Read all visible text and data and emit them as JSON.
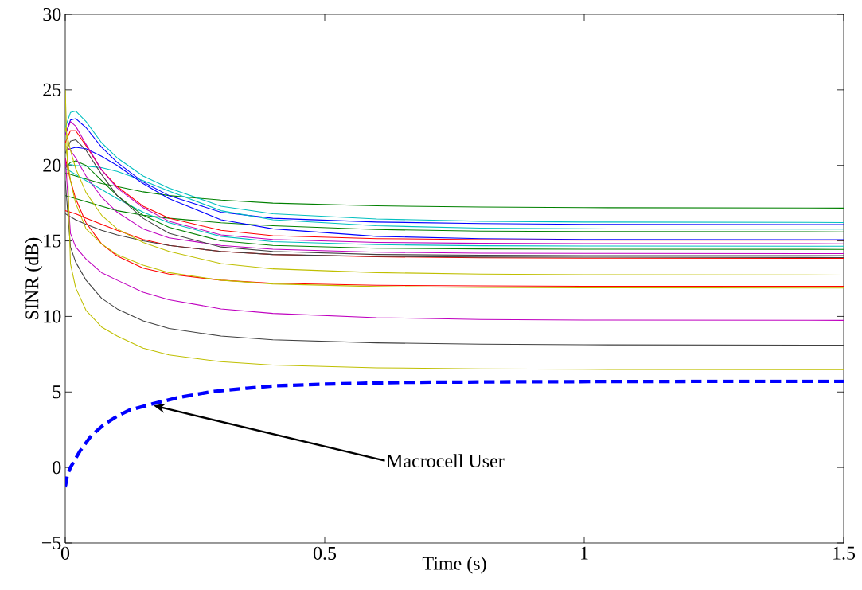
{
  "chart_data": {
    "type": "line",
    "xlabel": "Time (s)",
    "ylabel": "SINR (dB)",
    "xlim": [
      0,
      1.5
    ],
    "ylim": [
      -5,
      30
    ],
    "xticks": [
      0,
      0.5,
      1,
      1.5
    ],
    "yticks": [
      {
        "value": -5,
        "label": "−5"
      },
      0,
      5,
      10,
      15,
      20,
      25,
      30
    ],
    "grid": false,
    "marker": "none",
    "x": [
      0,
      0.01,
      0.02,
      0.04,
      0.07,
      0.1,
      0.15,
      0.2,
      0.3,
      0.4,
      0.6,
      0.8,
      1.0,
      1.5
    ],
    "series": [
      {
        "color": "#008000",
        "line_style": "solid",
        "values": [
          19.5,
          19.4,
          19.3,
          19.1,
          18.8,
          18.6,
          18.25,
          18.0,
          17.7,
          17.5,
          17.32,
          17.24,
          17.2,
          17.17
        ]
      },
      {
        "color": "#00bfbf",
        "line_style": "solid",
        "values": [
          22.5,
          23.5,
          23.6,
          22.9,
          21.5,
          20.5,
          19.3,
          18.5,
          17.3,
          16.8,
          16.45,
          16.3,
          16.25,
          16.22
        ]
      },
      {
        "color": "#0000ff",
        "line_style": "solid",
        "values": [
          22.0,
          23.0,
          23.1,
          22.5,
          21.2,
          20.2,
          18.9,
          18.0,
          16.9,
          16.5,
          16.25,
          16.15,
          16.1,
          16.08
        ]
      },
      {
        "color": "#00bfbf",
        "line_style": "solid",
        "values": [
          20.05,
          20.05,
          20.0,
          19.95,
          19.85,
          19.6,
          19.0,
          18.3,
          17.0,
          16.4,
          16.0,
          15.85,
          15.8,
          15.78
        ]
      },
      {
        "color": "#008000",
        "line_style": "solid",
        "values": [
          18.0,
          17.9,
          17.8,
          17.6,
          17.3,
          17.0,
          16.7,
          16.5,
          16.2,
          16.0,
          15.75,
          15.65,
          15.62,
          15.6
        ]
      },
      {
        "color": "#0000ff",
        "line_style": "solid",
        "values": [
          21.0,
          21.1,
          21.2,
          21.1,
          20.6,
          20.0,
          18.8,
          17.8,
          16.4,
          15.8,
          15.3,
          15.15,
          15.1,
          15.08
        ]
      },
      {
        "color": "#ff0000",
        "line_style": "solid",
        "values": [
          21.5,
          22.3,
          22.3,
          21.3,
          19.7,
          18.6,
          17.3,
          16.5,
          15.7,
          15.35,
          15.15,
          15.08,
          15.05,
          15.04
        ]
      },
      {
        "color": "#bf00bf",
        "line_style": "solid",
        "values": [
          22.0,
          22.9,
          22.6,
          21.4,
          19.7,
          18.5,
          17.2,
          16.3,
          15.4,
          15.1,
          14.9,
          14.84,
          14.82,
          14.81
        ]
      },
      {
        "color": "#00bfbf",
        "line_style": "solid",
        "values": [
          19.8,
          19.6,
          19.4,
          19.0,
          18.4,
          17.8,
          16.9,
          16.2,
          15.3,
          14.95,
          14.75,
          14.68,
          14.66,
          14.65
        ]
      },
      {
        "color": "#008000",
        "line_style": "solid",
        "values": [
          19.8,
          20.2,
          20.3,
          20.0,
          19.0,
          18.0,
          16.7,
          15.9,
          15.0,
          14.7,
          14.52,
          14.47,
          14.45,
          14.44
        ]
      },
      {
        "color": "#bf00bf",
        "line_style": "solid",
        "values": [
          21.3,
          21.0,
          20.5,
          19.3,
          17.9,
          16.9,
          15.8,
          15.2,
          14.7,
          14.45,
          14.25,
          14.19,
          14.17,
          14.16
        ]
      },
      {
        "color": "#404040",
        "line_style": "solid",
        "values": [
          20.8,
          21.6,
          21.7,
          21.0,
          19.4,
          18.0,
          16.5,
          15.5,
          14.6,
          14.3,
          14.1,
          14.05,
          14.03,
          14.02
        ]
      },
      {
        "color": "#ff0000",
        "line_style": "solid",
        "values": [
          17.0,
          16.9,
          16.8,
          16.5,
          16.1,
          15.7,
          15.1,
          14.7,
          14.3,
          14.1,
          13.95,
          13.88,
          13.86,
          13.85
        ]
      },
      {
        "color": "#404040",
        "line_style": "solid",
        "values": [
          16.8,
          16.6,
          16.4,
          16.1,
          15.7,
          15.4,
          15.0,
          14.7,
          14.3,
          14.1,
          13.98,
          13.93,
          13.92,
          13.9
        ]
      },
      {
        "color": "#bfbf00",
        "line_style": "solid",
        "values": [
          22.5,
          21.0,
          19.8,
          18.2,
          16.7,
          15.8,
          14.9,
          14.3,
          13.5,
          13.15,
          12.9,
          12.8,
          12.76,
          12.74
        ]
      },
      {
        "color": "#ff0000",
        "line_style": "solid",
        "values": [
          20.5,
          19.0,
          17.8,
          16.2,
          14.8,
          14.0,
          13.2,
          12.8,
          12.4,
          12.2,
          12.06,
          12.02,
          12.0,
          12.0
        ]
      },
      {
        "color": "#bfbf00",
        "line_style": "solid",
        "values": [
          21.5,
          19.0,
          17.5,
          15.8,
          14.8,
          14.1,
          13.4,
          12.9,
          12.4,
          12.15,
          11.98,
          11.92,
          11.9,
          11.88
        ]
      },
      {
        "color": "#bf00bf",
        "line_style": "solid",
        "values": [
          20.5,
          15.5,
          14.6,
          13.8,
          12.9,
          12.4,
          11.6,
          11.1,
          10.5,
          10.2,
          9.92,
          9.8,
          9.76,
          9.74
        ]
      },
      {
        "color": "#404040",
        "line_style": "solid",
        "values": [
          19.0,
          14.6,
          13.6,
          12.4,
          11.2,
          10.5,
          9.7,
          9.2,
          8.7,
          8.45,
          8.25,
          8.16,
          8.12,
          8.1
        ]
      },
      {
        "color": "#bfbf00",
        "line_style": "solid",
        "values": [
          25.0,
          13.5,
          11.9,
          10.4,
          9.3,
          8.7,
          7.9,
          7.45,
          7.0,
          6.78,
          6.6,
          6.53,
          6.5,
          6.48
        ]
      },
      {
        "color": "#0000ff",
        "line_style": "dashed",
        "x": [
          0,
          0.004,
          0.01,
          0.028,
          0.05,
          0.074,
          0.1,
          0.124,
          0.17,
          0.22,
          0.284,
          0.35,
          0.406,
          0.5,
          0.66,
          0.9,
          1.2,
          1.5
        ],
        "values": [
          -1.3,
          -0.5,
          0.0,
          1.07,
          2.1,
          2.83,
          3.4,
          3.8,
          4.23,
          4.65,
          5.03,
          5.25,
          5.41,
          5.52,
          5.64,
          5.68,
          5.7,
          5.7
        ]
      }
    ],
    "annotations": [
      {
        "text": "Macrocell User",
        "x": 0.17,
        "y": 4.1
      }
    ]
  }
}
